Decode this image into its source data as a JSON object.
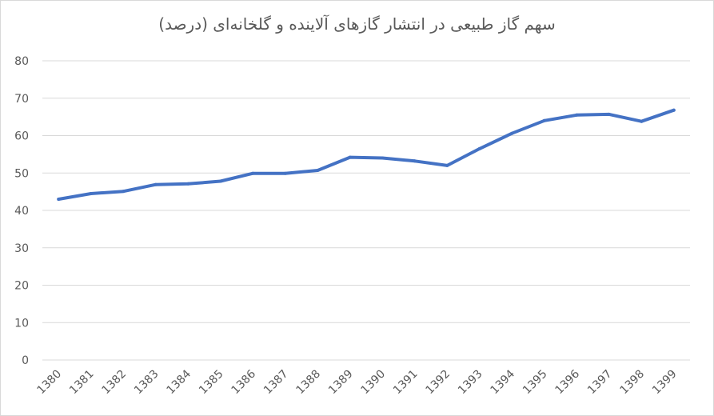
{
  "chart_data": {
    "type": "line",
    "title": "سهم گاز طبیعی در انتشار گازهای آلاینده و گلخانه‌ای (درصد)",
    "xlabel": "",
    "ylabel": "",
    "ylim": [
      0,
      80
    ],
    "yticks": [
      0,
      10,
      20,
      30,
      40,
      50,
      60,
      70,
      80
    ],
    "grid": true,
    "legend": "none",
    "categories": [
      "1380",
      "1381",
      "1382",
      "1383",
      "1384",
      "1385",
      "1386",
      "1387",
      "1388",
      "1389",
      "1390",
      "1391",
      "1392",
      "1393",
      "1394",
      "1395",
      "1396",
      "1397",
      "1398",
      "1399"
    ],
    "series": [
      {
        "color": "#4472c4",
        "values": [
          43.0,
          44.5,
          45.1,
          46.9,
          47.1,
          47.8,
          49.9,
          49.9,
          50.7,
          54.2,
          54.0,
          53.2,
          52.0,
          56.5,
          60.6,
          64.0,
          65.5,
          65.7,
          63.8,
          66.8
        ]
      }
    ]
  }
}
